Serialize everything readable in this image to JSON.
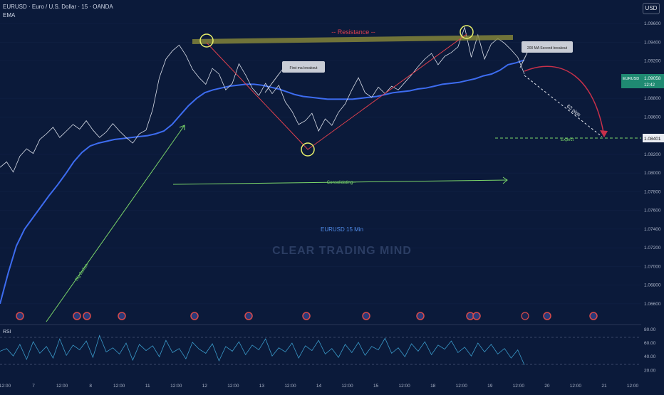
{
  "header": {
    "title": "EURUSD · Euro / U.S. Dollar · 15 · OANDA",
    "indicator": "EMA",
    "currency_button": "USD"
  },
  "price_axis": {
    "ticks": [
      "1.09600",
      "1.09400",
      "1.09200",
      "1.08800",
      "1.08600",
      "1.08200",
      "1.08000",
      "1.07800",
      "1.07600",
      "1.07400",
      "1.07200",
      "1.07000",
      "1.06800",
      "1.06600"
    ],
    "current_label": "EURUSD",
    "current_price": "1.09058",
    "countdown": "12:42",
    "expect_price": "1.08401"
  },
  "time_axis": [
    "12:00",
    "7",
    "12:00",
    "8",
    "12:00",
    "11",
    "12:00",
    "12",
    "12:00",
    "13",
    "12:00",
    "14",
    "12:00",
    "15",
    "12:00",
    "18",
    "12:00",
    "19",
    "12:00",
    "20",
    "12:00",
    "21",
    "12:00"
  ],
  "annotations": {
    "resistance": "-- Resistance --",
    "first_ma": "First ma breakout",
    "second_ma": "200 MA Second  breakout",
    "pips": "63 pips",
    "expect": "Expect",
    "consolidating": "--Consolidating--",
    "big_bullish": "Big Bullish",
    "subtitle": "EURUSD 15 Min",
    "watermark": "CLEAR TRADING MIND"
  },
  "rsi": {
    "label": "RSI",
    "ticks": [
      "80.00",
      "60.00",
      "40.00",
      "20.00"
    ],
    "upper": 70,
    "lower": 30
  },
  "colors": {
    "background": "#0b1a3a",
    "price_line": "#d8dde8",
    "ema": "#3d6cf0",
    "resistance_band": "#8a8a3a",
    "red_path": "#e0404e",
    "green_line": "#7bd66a",
    "rsi_line": "#3a9ac9"
  },
  "chart_data": {
    "type": "line",
    "series": [
      {
        "name": "EURUSD",
        "values": [
          1.0806,
          1.0812,
          1.0801,
          1.0818,
          1.0826,
          1.0821,
          1.0836,
          1.0842,
          1.0849,
          1.0838,
          1.0845,
          1.0852,
          1.0847,
          1.0856,
          1.0846,
          1.0838,
          1.0844,
          1.0853,
          1.0845,
          1.0838,
          1.0832,
          1.0842,
          1.0846,
          1.0868,
          1.0902,
          1.0922,
          1.0931,
          1.0937,
          1.0926,
          1.0911,
          1.0902,
          1.0895,
          1.0912,
          1.0906,
          1.0889,
          1.0896,
          1.0917,
          1.0905,
          1.0891,
          1.0883,
          1.0896,
          1.0885,
          1.0894,
          1.0876,
          1.0866,
          1.0852,
          1.0856,
          1.0864,
          1.0845,
          1.0858,
          1.0851,
          1.0865,
          1.0874,
          1.0889,
          1.0902,
          1.0886,
          1.0881,
          1.0892,
          1.0885,
          1.0893,
          1.0889,
          1.0897,
          1.0905,
          1.0914,
          1.0922,
          1.0928,
          1.0916,
          1.0925,
          1.0929,
          1.0935,
          1.0956,
          1.0924,
          1.0948,
          1.0922,
          1.0938,
          1.0944,
          1.0939,
          1.0932,
          1.0924,
          1.0906
        ]
      },
      {
        "name": "EMA",
        "values": [
          1.066,
          1.0693,
          1.0722,
          1.074,
          1.0752,
          1.0764,
          1.0776,
          1.0787,
          1.0799,
          1.0812,
          1.0822,
          1.0829,
          1.0832,
          1.0834,
          1.0836,
          1.0837,
          1.0838,
          1.0839,
          1.084,
          1.0842,
          1.0845,
          1.0852,
          1.0862,
          1.0872,
          1.088,
          1.0886,
          1.0889,
          1.0891,
          1.0893,
          1.0894,
          1.0895,
          1.0895,
          1.0894,
          1.0892,
          1.089,
          1.0887,
          1.0884,
          1.0882,
          1.0881,
          1.088,
          1.0879,
          1.0879,
          1.0879,
          1.0879,
          1.088,
          1.0881,
          1.0882,
          1.0884,
          1.0886,
          1.0887,
          1.0888,
          1.089,
          1.0891,
          1.0893,
          1.0895,
          1.0896,
          1.0897,
          1.0899,
          1.0901,
          1.0904,
          1.0906,
          1.091,
          1.0916,
          1.0918,
          1.0921
        ]
      }
    ],
    "rsi_values": [
      48,
      52,
      41,
      58,
      36,
      62,
      45,
      55,
      38,
      66,
      42,
      57,
      50,
      63,
      39,
      71,
      47,
      53,
      44,
      60,
      35,
      58,
      49,
      56,
      40,
      64,
      46,
      52,
      37,
      61,
      51,
      45,
      59,
      34,
      55,
      48,
      62,
      43,
      57,
      50,
      66,
      41,
      53,
      47,
      60,
      38,
      56,
      49,
      64,
      44,
      52,
      39,
      58,
      46,
      61,
      42,
      55,
      50,
      67,
      45,
      53,
      40,
      59,
      48,
      62,
      43,
      57,
      51,
      63,
      46,
      54,
      41,
      60,
      47,
      58,
      44,
      52,
      38,
      50,
      28
    ]
  }
}
